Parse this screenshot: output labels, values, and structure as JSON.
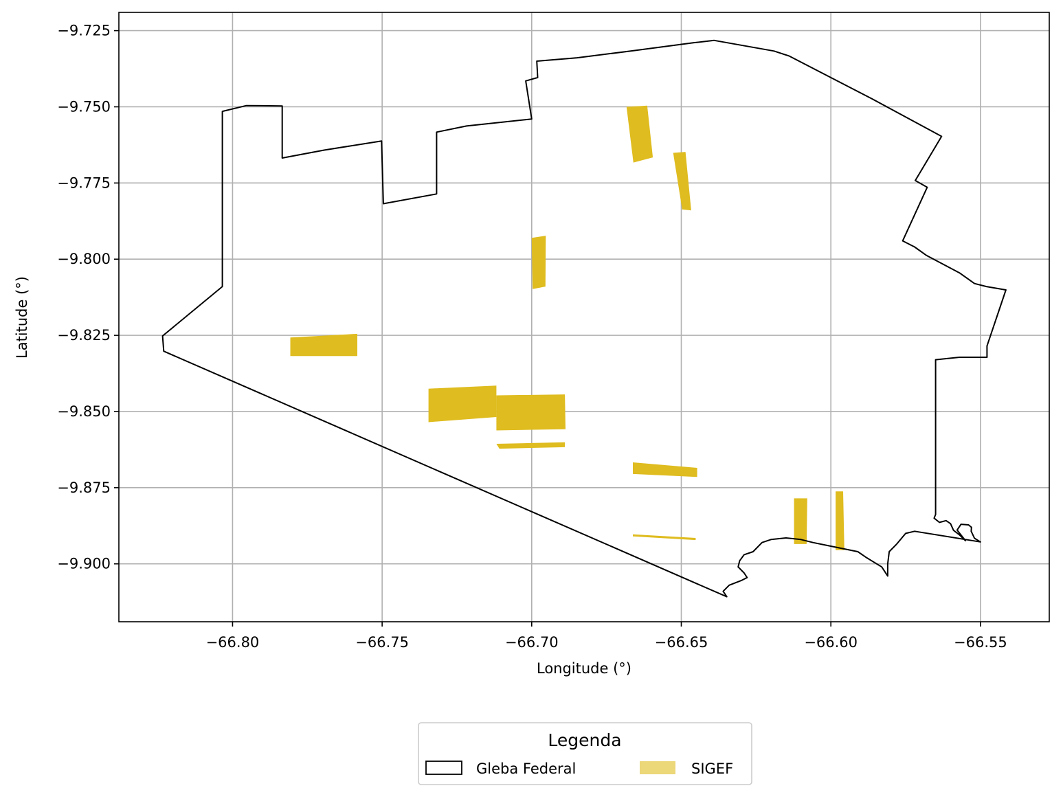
{
  "chart_data": {
    "type": "map",
    "xlabel": "Longitude (°)",
    "ylabel": "Latitude (°)",
    "xlim": [
      -66.838,
      -66.527
    ],
    "ylim": [
      -9.919,
      -9.719
    ],
    "grid": true,
    "xticks": [
      -66.8,
      -66.75,
      -66.7,
      -66.65,
      -66.6,
      -66.55
    ],
    "xtick_labels": [
      "−66.80",
      "−66.75",
      "−66.70",
      "−66.65",
      "−66.60",
      "−66.55"
    ],
    "yticks": [
      -9.725,
      -9.75,
      -9.775,
      -9.8,
      -9.825,
      -9.85,
      -9.875,
      -9.9
    ],
    "ytick_labels": [
      "−9.725",
      "−9.750",
      "−9.775",
      "−9.800",
      "−9.825",
      "−9.850",
      "−9.875",
      "−9.900"
    ],
    "legend": {
      "title": "Legenda",
      "placement": "bottom-center, below plot",
      "entries": [
        {
          "label": "Gleba Federal",
          "style": "outline",
          "color": "#000000"
        },
        {
          "label": "SIGEF",
          "style": "fill",
          "color": "#DFBC1F"
        }
      ]
    },
    "series": [
      {
        "name": "Gleba Federal",
        "kind": "polygon-outline",
        "color": "#000000",
        "points": [
          [
            -66.8234,
            -9.8252
          ],
          [
            -66.8034,
            -9.809
          ],
          [
            -66.8034,
            -9.7712
          ],
          [
            -66.8034,
            -9.7515
          ],
          [
            -66.7954,
            -9.7496
          ],
          [
            -66.7834,
            -9.7497
          ],
          [
            -66.7834,
            -9.7668
          ],
          [
            -66.7694,
            -9.7642
          ],
          [
            -66.7502,
            -9.7612
          ],
          [
            -66.7496,
            -9.7818
          ],
          [
            -66.7318,
            -9.7786
          ],
          [
            -66.7318,
            -9.7583
          ],
          [
            -66.7218,
            -9.7563
          ],
          [
            -66.7,
            -9.754
          ],
          [
            -66.702,
            -9.7415
          ],
          [
            -66.698,
            -9.7404
          ],
          [
            -66.6983,
            -9.735
          ],
          [
            -66.6848,
            -9.7339
          ],
          [
            -66.6662,
            -9.7316
          ],
          [
            -66.646,
            -9.729
          ],
          [
            -66.639,
            -9.7282
          ],
          [
            -66.619,
            -9.7317
          ],
          [
            -66.614,
            -9.7333
          ],
          [
            -66.586,
            -9.7475
          ],
          [
            -66.563,
            -9.7597
          ],
          [
            -66.5718,
            -9.7742
          ],
          [
            -66.5678,
            -9.7764
          ],
          [
            -66.576,
            -9.794
          ],
          [
            -66.572,
            -9.796
          ],
          [
            -66.568,
            -9.7988
          ],
          [
            -66.557,
            -9.8045
          ],
          [
            -66.552,
            -9.808
          ],
          [
            -66.548,
            -9.809
          ],
          [
            -66.5415,
            -9.8101
          ],
          [
            -66.5478,
            -9.8285
          ],
          [
            -66.5478,
            -9.8322
          ],
          [
            -66.557,
            -9.8322
          ],
          [
            -66.565,
            -9.833
          ],
          [
            -66.565,
            -9.8355
          ],
          [
            -66.565,
            -9.8838
          ],
          [
            -66.5655,
            -9.885
          ],
          [
            -66.5637,
            -9.8864
          ],
          [
            -66.5615,
            -9.8858
          ],
          [
            -66.56,
            -9.8868
          ],
          [
            -66.559,
            -9.889
          ],
          [
            -66.557,
            -9.8905
          ],
          [
            -66.555,
            -9.8924
          ],
          [
            -66.5578,
            -9.8889
          ],
          [
            -66.5565,
            -9.887
          ],
          [
            -66.554,
            -9.8872
          ],
          [
            -66.553,
            -9.888
          ],
          [
            -66.5531,
            -9.8893
          ],
          [
            -66.552,
            -9.8916
          ],
          [
            -66.55,
            -9.8928
          ],
          [
            -66.572,
            -9.8893
          ],
          [
            -66.575,
            -9.89
          ],
          [
            -66.578,
            -9.8935
          ],
          [
            -66.5805,
            -9.896
          ],
          [
            -66.581,
            -9.9
          ],
          [
            -66.581,
            -9.904
          ],
          [
            -66.583,
            -9.901
          ],
          [
            -66.588,
            -9.898
          ],
          [
            -66.591,
            -9.896
          ],
          [
            -66.601,
            -9.894
          ],
          [
            -66.606,
            -9.893
          ],
          [
            -66.61,
            -9.892
          ],
          [
            -66.615,
            -9.8915
          ],
          [
            -66.62,
            -9.892
          ],
          [
            -66.623,
            -9.893
          ],
          [
            -66.626,
            -9.896
          ],
          [
            -66.629,
            -9.897
          ],
          [
            -66.6305,
            -9.899
          ],
          [
            -66.631,
            -9.901
          ],
          [
            -66.629,
            -9.903
          ],
          [
            -66.628,
            -9.9045
          ],
          [
            -66.63,
            -9.9055
          ],
          [
            -66.634,
            -9.907
          ],
          [
            -66.636,
            -9.909
          ],
          [
            -66.6348,
            -9.9108
          ],
          [
            -66.823,
            -9.8302
          ]
        ]
      },
      {
        "name": "SIGEF",
        "kind": "polygon-fill",
        "color": "#DFBC1F",
        "polygons": [
          [
            [
              -66.6683,
              -9.75
            ],
            [
              -66.6614,
              -9.7496
            ],
            [
              -66.6595,
              -9.7666
            ],
            [
              -66.666,
              -9.7683
            ]
          ],
          [
            [
              -66.6527,
              -9.7651
            ],
            [
              -66.6486,
              -9.7648
            ],
            [
              -66.6467,
              -9.784
            ],
            [
              -66.6497,
              -9.7837
            ]
          ],
          [
            [
              -66.7,
              -9.793
            ],
            [
              -66.6953,
              -9.7923
            ],
            [
              -66.6954,
              -9.809
            ],
            [
              -66.6997,
              -9.8098
            ]
          ],
          [
            [
              -66.7807,
              -9.8257
            ],
            [
              -66.7583,
              -9.8245
            ],
            [
              -66.7583,
              -9.8318
            ],
            [
              -66.7807,
              -9.8318
            ]
          ],
          [
            [
              -66.7345,
              -9.8425
            ],
            [
              -66.7118,
              -9.8415
            ],
            [
              -66.7118,
              -9.8518
            ],
            [
              -66.7345,
              -9.8535
            ]
          ],
          [
            [
              -66.7118,
              -9.8447
            ],
            [
              -66.6889,
              -9.8444
            ],
            [
              -66.6887,
              -9.8558
            ],
            [
              -66.7118,
              -9.8562
            ]
          ],
          [
            [
              -66.7118,
              -9.8606
            ],
            [
              -66.6889,
              -9.8601
            ],
            [
              -66.6889,
              -9.8617
            ],
            [
              -66.7108,
              -9.8622
            ]
          ],
          [
            [
              -66.6662,
              -9.8667
            ],
            [
              -66.6447,
              -9.8685
            ],
            [
              -66.6447,
              -9.8715
            ],
            [
              -66.6662,
              -9.8705
            ]
          ],
          [
            [
              -66.6662,
              -9.8903
            ],
            [
              -66.6452,
              -9.8915
            ],
            [
              -66.6452,
              -9.8922
            ],
            [
              -66.6662,
              -9.891
            ]
          ],
          [
            [
              -66.6123,
              -9.8785
            ],
            [
              -66.6079,
              -9.8785
            ],
            [
              -66.6081,
              -9.8935
            ],
            [
              -66.6123,
              -9.8935
            ]
          ],
          [
            [
              -66.5984,
              -9.8762
            ],
            [
              -66.5959,
              -9.8762
            ],
            [
              -66.5955,
              -9.8955
            ],
            [
              -66.5984,
              -9.8955
            ]
          ]
        ]
      }
    ]
  }
}
